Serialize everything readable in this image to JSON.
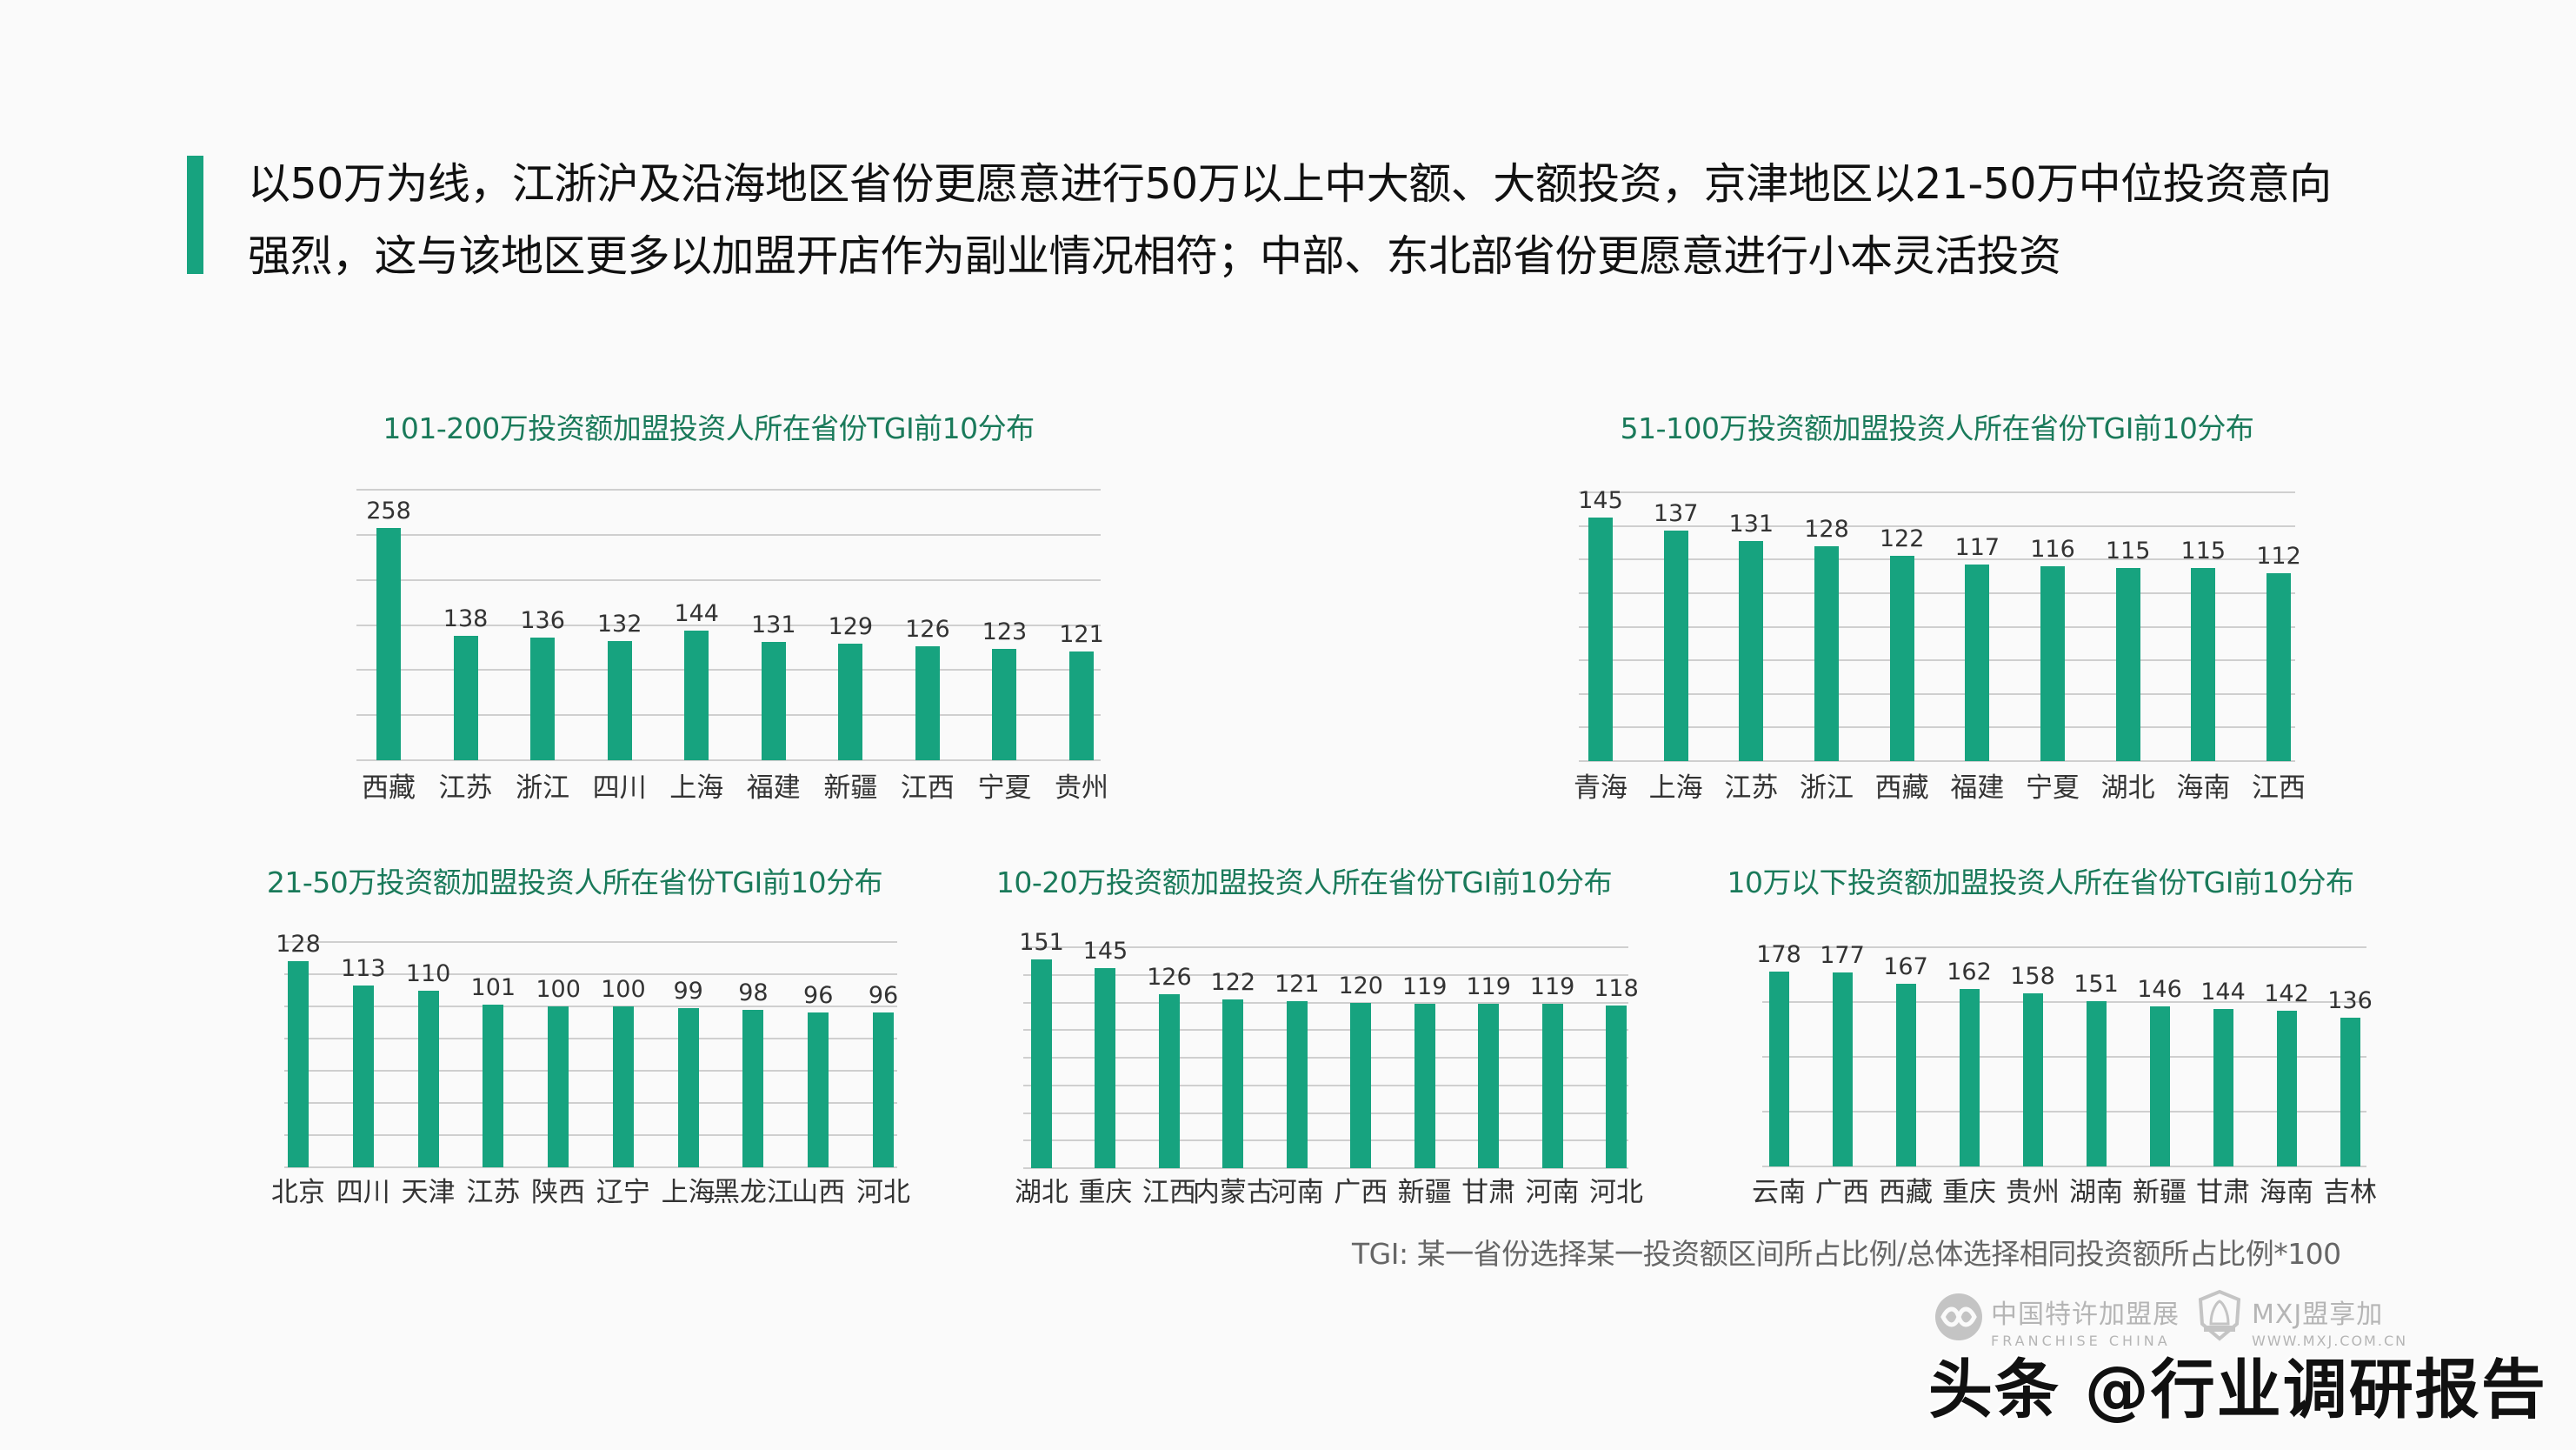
{
  "header": {
    "line1": "以50万为线，江浙沪及沿海地区省份更愿意进行50万以上中大额、大额投资，京津地区以21-50万中位投资意向",
    "line2": "强烈，这与该地区更多以加盟开店作为副业情况相符；中部、东北部省份更愿意进行小本灵活投资"
  },
  "footnote": "TGI: 某一省份选择某一投资额区间所占比例/总体选择相同投资额所占比例*100",
  "logos": {
    "franchise_cn": "中国特许加盟展",
    "franchise_en": "FRANCHISE CHINA",
    "mxj_cn": "MXJ盟享加",
    "mxj_en": "WWW.MXJ.COM.CN"
  },
  "watermark": "头条 @行业调研报告",
  "colors": {
    "bar": "#17a37f",
    "title": "#1a7a5a",
    "accent": "#17a37f",
    "grid": "#cfcfcf"
  },
  "chart_data": [
    {
      "type": "bar",
      "title": "101-200万投资额加盟投资人所在省份TGI前10分布",
      "categories": [
        "西藏",
        "江苏",
        "浙江",
        "四川",
        "上海",
        "福建",
        "新疆",
        "江西",
        "宁夏",
        "贵州"
      ],
      "values": [
        258,
        138,
        136,
        132,
        144,
        131,
        129,
        126,
        123,
        121
      ],
      "yticks": [
        0,
        50,
        100,
        150,
        200,
        250,
        300
      ],
      "ylim": [
        0,
        300
      ],
      "grid": true,
      "xlabel": "",
      "ylabel": ""
    },
    {
      "type": "bar",
      "title": "51-100万投资额加盟投资人所在省份TGI前10分布",
      "categories": [
        "青海",
        "上海",
        "江苏",
        "浙江",
        "西藏",
        "福建",
        "宁夏",
        "湖北",
        "海南",
        "江西"
      ],
      "values": [
        145,
        137,
        131,
        128,
        122,
        117,
        116,
        115,
        115,
        112
      ],
      "yticks": [
        0,
        20,
        40,
        60,
        80,
        100,
        120,
        140,
        160
      ],
      "ylim": [
        0,
        160
      ],
      "grid": true,
      "xlabel": "",
      "ylabel": ""
    },
    {
      "type": "bar",
      "title": "21-50万投资额加盟投资人所在省份TGI前10分布",
      "categories": [
        "北京",
        "四川",
        "天津",
        "江苏",
        "陕西",
        "辽宁",
        "上海",
        "黑龙江",
        "山西",
        "河北"
      ],
      "values": [
        128,
        113,
        110,
        101,
        100,
        100,
        99,
        98,
        96,
        96
      ],
      "yticks": [
        0,
        20,
        40,
        60,
        80,
        100,
        120,
        140
      ],
      "ylim": [
        0,
        140
      ],
      "grid": true,
      "xlabel": "",
      "ylabel": ""
    },
    {
      "type": "bar",
      "title": "10-20万投资额加盟投资人所在省份TGI前10分布",
      "categories": [
        "湖北",
        "重庆",
        "江西",
        "内蒙古",
        "河南",
        "广西",
        "新疆",
        "甘肃",
        "河南",
        "河北"
      ],
      "values": [
        151,
        145,
        126,
        122,
        121,
        120,
        119,
        119,
        119,
        118
      ],
      "yticks": [
        0,
        20,
        40,
        60,
        80,
        100,
        120,
        140,
        160
      ],
      "ylim": [
        0,
        160
      ],
      "grid": true,
      "xlabel": "",
      "ylabel": ""
    },
    {
      "type": "bar",
      "title": "10万以下投资额加盟投资人所在省份TGI前10分布",
      "categories": [
        "云南",
        "广西",
        "西藏",
        "重庆",
        "贵州",
        "湖南",
        "新疆",
        "甘肃",
        "海南",
        "吉林"
      ],
      "values": [
        178,
        177,
        167,
        162,
        158,
        151,
        146,
        144,
        142,
        136
      ],
      "yticks": [
        0,
        50,
        100,
        150,
        200
      ],
      "ylim": [
        0,
        200
      ],
      "grid": true,
      "xlabel": "",
      "ylabel": ""
    }
  ]
}
